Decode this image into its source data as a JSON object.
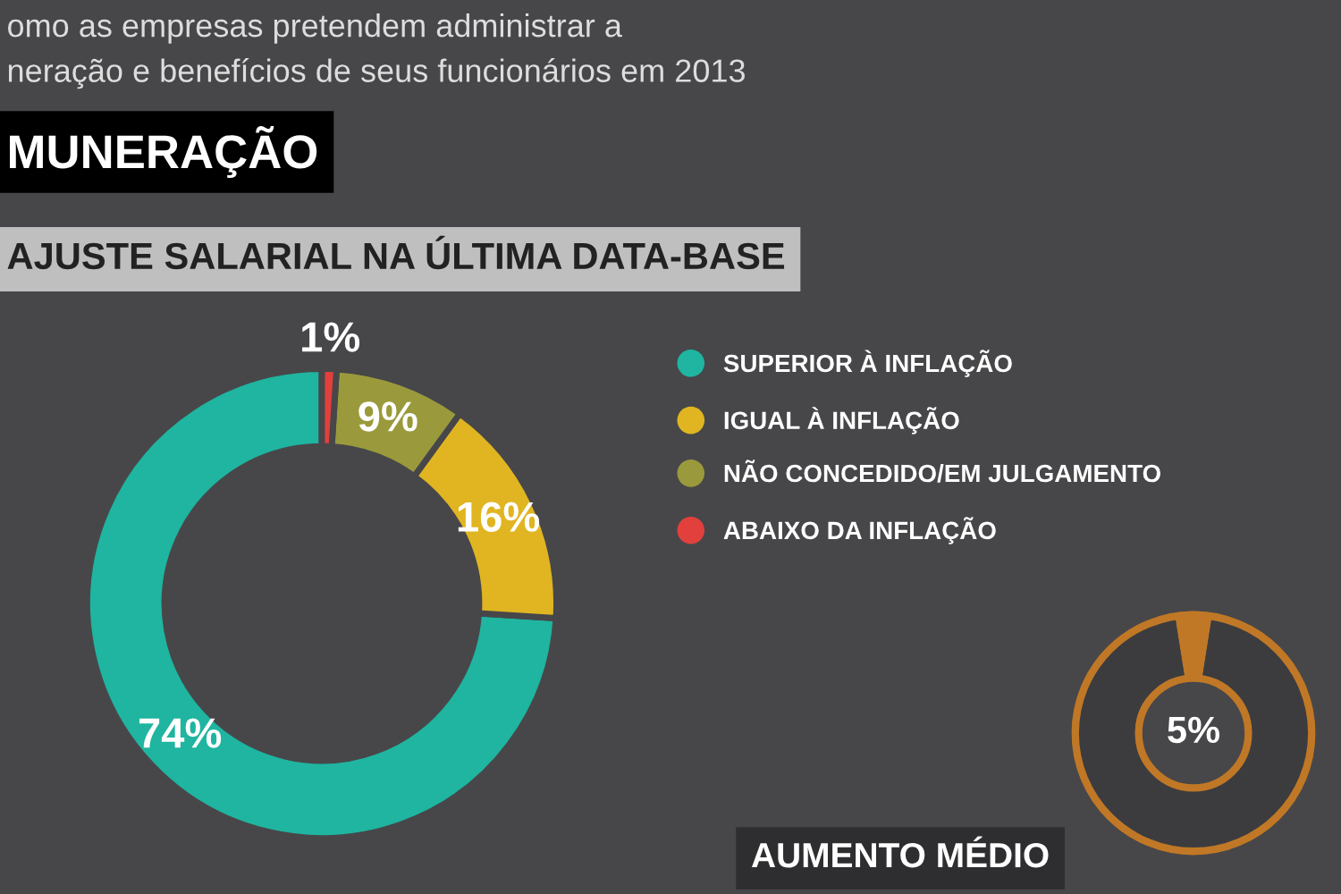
{
  "chart_data": [
    {
      "type": "donut",
      "title": "AJUSTE SALARIAL NA ÚLTIMA DATA-BASE",
      "annotations": [
        "omo as empresas pretendem administrar a",
        "neração e benefícios de seus funcionários em 2013",
        "MUNERAÇÃO"
      ],
      "categories": [
        "SUPERIOR À INFLAÇÃO",
        "IGUAL À INFLAÇÃO",
        "NÃO CONCEDIDO/EM JULGAMENTO",
        "ABAIXO DA INFLAÇÃO"
      ],
      "values": [
        74,
        16,
        9,
        1
      ],
      "colors": [
        "#1fb5a0",
        "#e0b521",
        "#9a9a3c",
        "#e2403c"
      ],
      "value_labels": [
        "74%",
        "16%",
        "9%",
        "1%"
      ],
      "legend": "right"
    },
    {
      "type": "donut",
      "title": "AUMENTO MÉDIO",
      "categories": [
        null,
        null
      ],
      "values": [
        5,
        95
      ],
      "colors": [
        "#c07826",
        "#3c3c3f"
      ],
      "value_labels": [
        "5%",
        null
      ]
    }
  ]
}
